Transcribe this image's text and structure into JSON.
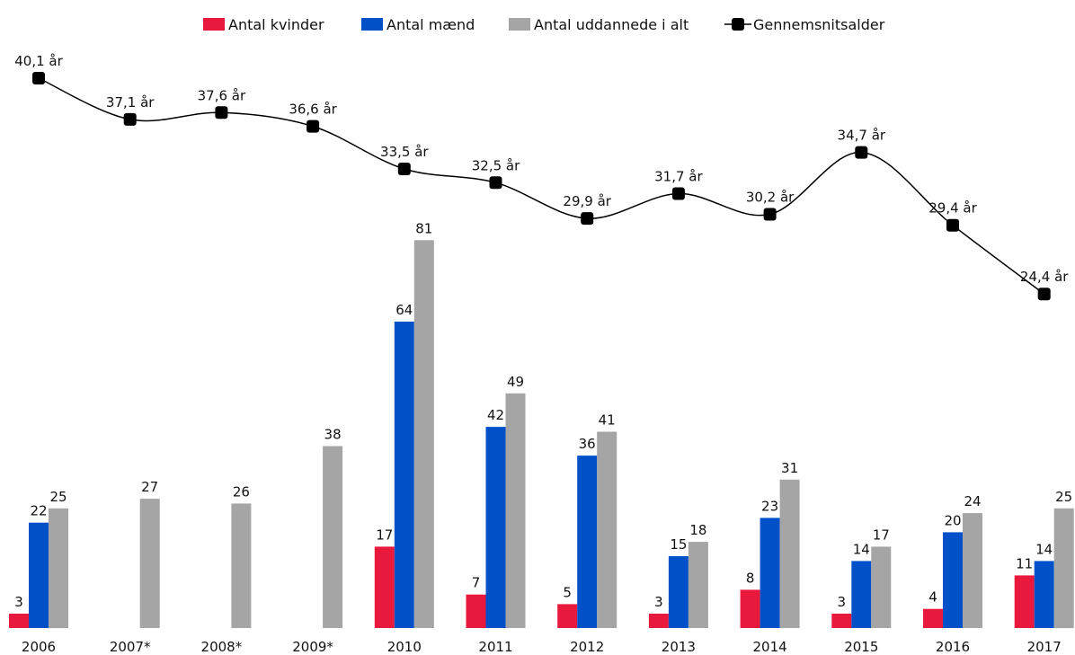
{
  "chart_data": {
    "type": "bar",
    "categories": [
      "2006",
      "2007*",
      "2008*",
      "2009*",
      "2010",
      "2011",
      "2012",
      "2013",
      "2014",
      "2015",
      "2016",
      "2017"
    ],
    "series": [
      {
        "name": "Antal kvinder",
        "color": "#e8193c",
        "values": [
          3,
          null,
          null,
          null,
          17,
          7,
          5,
          3,
          8,
          3,
          4,
          11
        ]
      },
      {
        "name": "Antal mænd",
        "color": "#0050c8",
        "values": [
          22,
          null,
          null,
          null,
          64,
          42,
          36,
          15,
          23,
          14,
          20,
          14
        ]
      },
      {
        "name": "Antal uddannede i alt",
        "color": "#a5a5a5",
        "values": [
          25,
          27,
          26,
          38,
          81,
          49,
          41,
          18,
          31,
          17,
          24,
          25
        ]
      }
    ],
    "line_series": {
      "name": "Gennemsnitsalder",
      "color": "#000000",
      "values": [
        40.1,
        37.1,
        37.6,
        36.6,
        33.5,
        32.5,
        29.9,
        31.7,
        30.2,
        34.7,
        29.4,
        24.4
      ],
      "labels": [
        "40,1 år",
        "37,1 år",
        "37,6 år",
        "36,6 år",
        "33,5 år",
        "32,5 år",
        "29,9 år",
        "31,7 år",
        "30,2 år",
        "34,7 år",
        "29,4 år",
        "24,4 år"
      ]
    },
    "legend_position": "top-center",
    "grid": false,
    "title": "",
    "xlabel": "",
    "ylabel": ""
  }
}
